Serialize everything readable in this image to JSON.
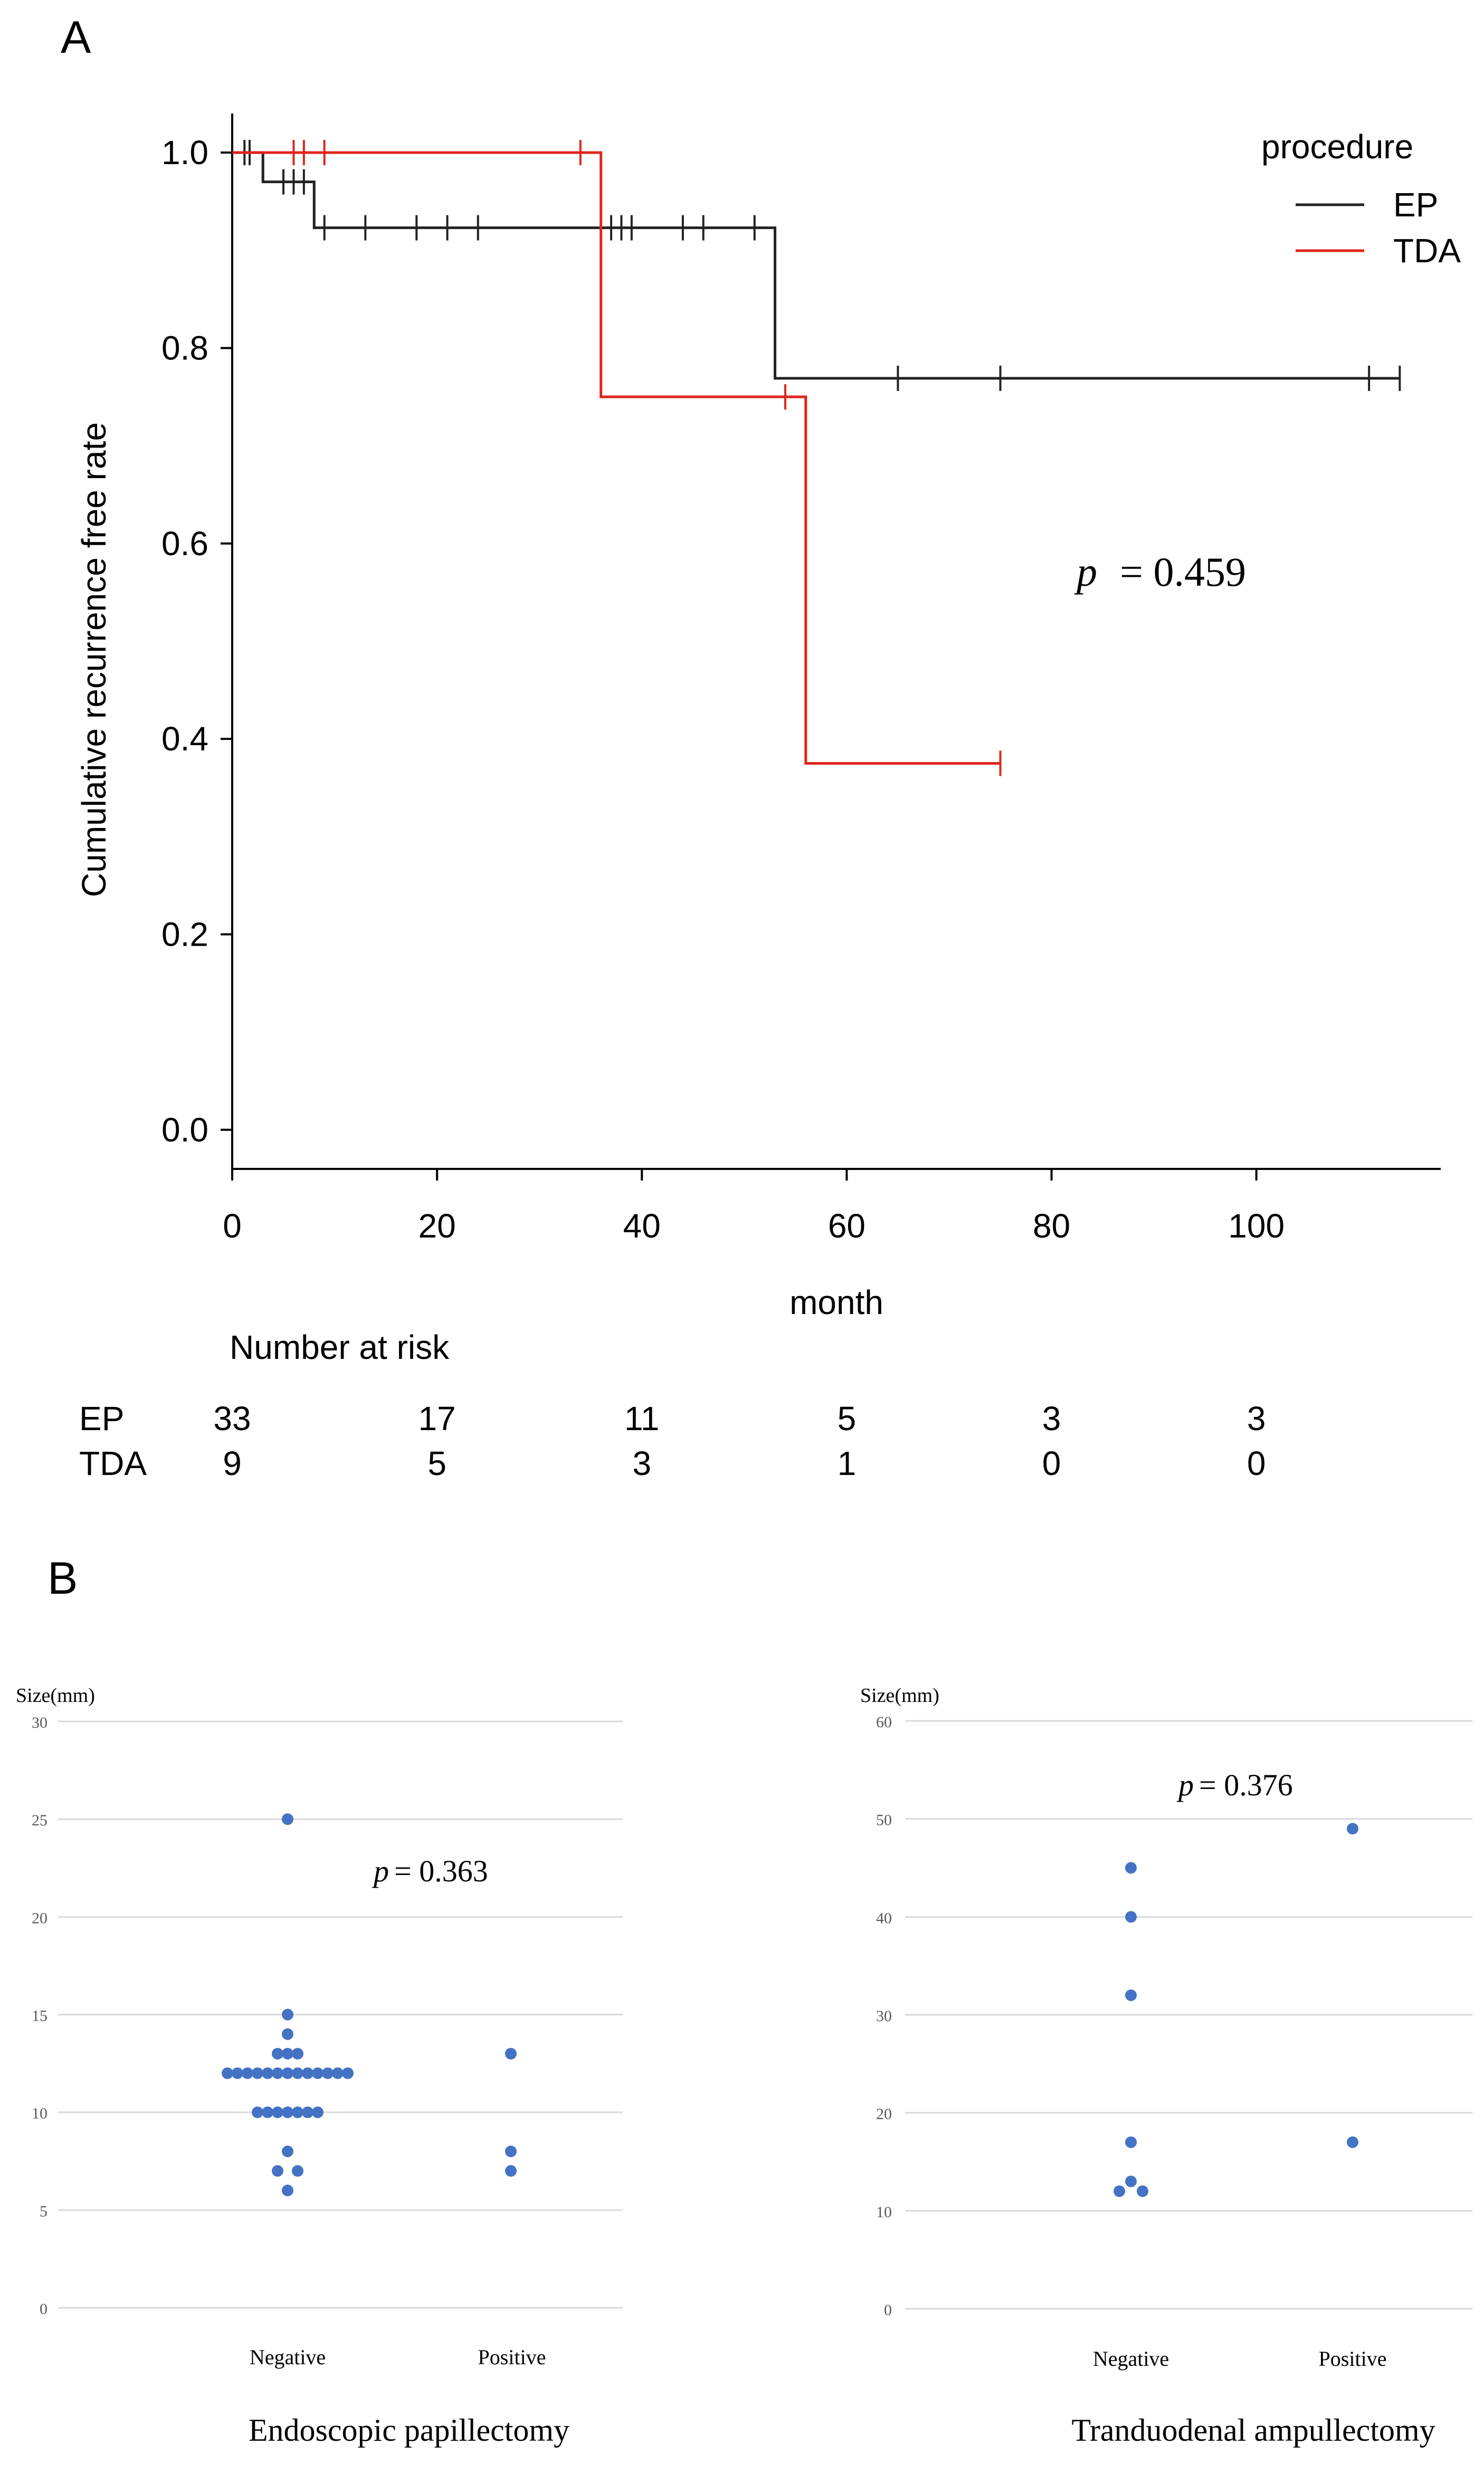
{
  "panel_a": {
    "label": "A",
    "p_prefix": "p",
    "p_text": "= 0.459",
    "risk_title": "Number at risk",
    "risk_rows": [
      {
        "name": "EP",
        "counts": [
          "33",
          "17",
          "11",
          "5",
          "3",
          "3"
        ]
      },
      {
        "name": "TDA",
        "counts": [
          "9",
          "5",
          "3",
          "1",
          "0",
          "0"
        ]
      }
    ]
  },
  "panel_b": {
    "label": "B",
    "left": {
      "p_prefix": "p",
      "p_text": "= 0.363"
    },
    "right": {
      "p_prefix": "p",
      "p_text": "= 0.376"
    }
  },
  "colors": {
    "ep": "#222222",
    "tda": "#e0251b",
    "dot": "#4472c4",
    "grid": "#d9d9d9",
    "axis_tick": "#595959"
  },
  "chart_data": [
    {
      "type": "line",
      "subtype": "kaplan-meier",
      "title": "",
      "xlabel": "month",
      "ylabel": "Cumulative recurrence free rate",
      "xlim": [
        0,
        118
      ],
      "ylim": [
        -0.04,
        1.04
      ],
      "xticks": [
        0,
        20,
        40,
        60,
        80,
        100
      ],
      "yticks": [
        "0.0",
        "0.2",
        "0.4",
        "0.6",
        "0.8",
        "1.0"
      ],
      "legend_title": "procedure",
      "legend_position": "top-right",
      "series": [
        {
          "name": "EP",
          "color": "#222222",
          "steps": [
            [
              0,
              1.0
            ],
            [
              3,
              0.97
            ],
            [
              8,
              0.923
            ],
            [
              53,
              0.769
            ],
            [
              114,
              0.769
            ]
          ],
          "censor": [
            [
              1.2,
              1.0
            ],
            [
              1.7,
              1.0
            ],
            [
              5,
              0.97
            ],
            [
              6,
              0.97
            ],
            [
              7,
              0.97
            ],
            [
              9,
              0.923
            ],
            [
              13,
              0.923
            ],
            [
              18,
              0.923
            ],
            [
              21,
              0.923
            ],
            [
              24,
              0.923
            ],
            [
              37,
              0.923
            ],
            [
              38,
              0.923
            ],
            [
              39,
              0.923
            ],
            [
              44,
              0.923
            ],
            [
              46,
              0.923
            ],
            [
              51,
              0.923
            ],
            [
              65,
              0.769
            ],
            [
              75,
              0.769
            ],
            [
              111,
              0.769
            ],
            [
              114,
              0.769
            ]
          ]
        },
        {
          "name": "TDA",
          "color": "#e0251b",
          "steps": [
            [
              0,
              1.0
            ],
            [
              36,
              0.75
            ],
            [
              56,
              0.375
            ],
            [
              75,
              0.375
            ]
          ],
          "censor": [
            [
              6,
              1.0
            ],
            [
              7,
              1.0
            ],
            [
              9,
              1.0
            ],
            [
              34,
              1.0
            ],
            [
              54,
              0.75
            ],
            [
              75,
              0.375
            ]
          ]
        }
      ]
    },
    {
      "type": "scatter",
      "subtype": "dot-plot",
      "title": "Endoscopic papillectomy",
      "ylabel": "Size(mm)",
      "ylim": [
        0,
        30
      ],
      "yticks": [
        "0",
        "5",
        "10",
        "15",
        "20",
        "25",
        "30"
      ],
      "categories": [
        "Negative",
        "Positive"
      ],
      "points": {
        "Negative": [
          [
            0,
            25
          ],
          [
            0,
            15
          ],
          [
            0,
            14
          ],
          [
            -1,
            13
          ],
          [
            0,
            13
          ],
          [
            1,
            13
          ],
          [
            -6,
            12
          ],
          [
            -5,
            12
          ],
          [
            -4,
            12
          ],
          [
            -3,
            12
          ],
          [
            -2,
            12
          ],
          [
            -1,
            12
          ],
          [
            0,
            12
          ],
          [
            1,
            12
          ],
          [
            2,
            12
          ],
          [
            3,
            12
          ],
          [
            4,
            12
          ],
          [
            5,
            12
          ],
          [
            6,
            12
          ],
          [
            -3,
            10
          ],
          [
            -2,
            10
          ],
          [
            -1,
            10
          ],
          [
            0,
            10
          ],
          [
            1,
            10
          ],
          [
            2,
            10
          ],
          [
            3,
            10
          ],
          [
            0,
            8
          ],
          [
            -1,
            7
          ],
          [
            1,
            7
          ],
          [
            0,
            6
          ]
        ],
        "Positive": [
          [
            0,
            13
          ],
          [
            0,
            8
          ],
          [
            0,
            7
          ]
        ]
      }
    },
    {
      "type": "scatter",
      "subtype": "dot-plot",
      "title": "Tranduodenal ampullectomy",
      "ylabel": "Size(mm)",
      "ylim": [
        0,
        60
      ],
      "yticks": [
        "0",
        "10",
        "20",
        "30",
        "40",
        "50",
        "60"
      ],
      "categories": [
        "Negative",
        "Positive"
      ],
      "points": {
        "Negative": [
          [
            0,
            45
          ],
          [
            0,
            40
          ],
          [
            0,
            32
          ],
          [
            0,
            17
          ],
          [
            0,
            13
          ],
          [
            -1,
            12
          ],
          [
            1,
            12
          ]
        ],
        "Positive": [
          [
            0,
            49
          ],
          [
            0,
            17
          ]
        ]
      }
    }
  ]
}
